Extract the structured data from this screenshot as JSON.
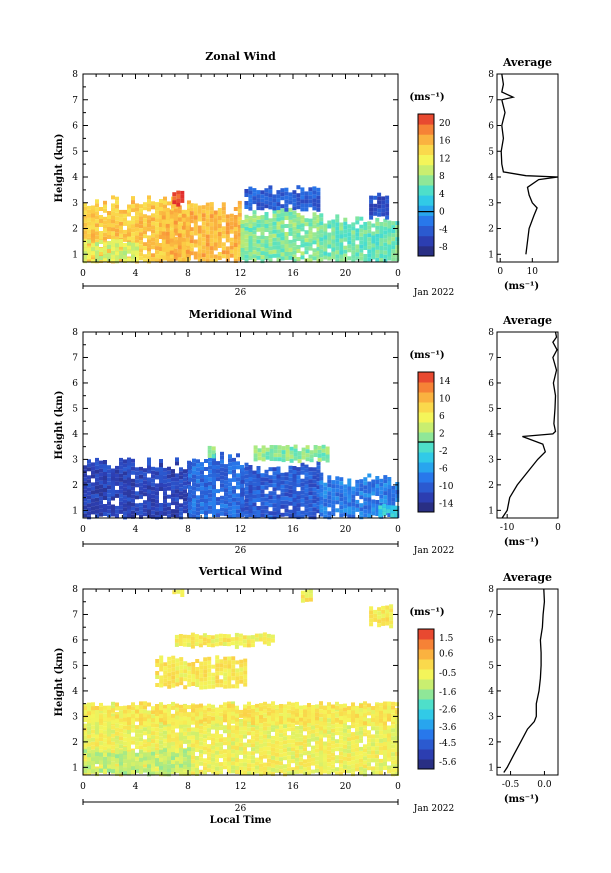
{
  "chart_data": [
    {
      "type": "heatmap",
      "title": "Zonal Wind",
      "ylabel": "Height (km)",
      "xlabel": "",
      "xlim": [
        0,
        24
      ],
      "ylim": [
        0.7,
        8
      ],
      "x_ticks": [
        "0",
        "4",
        "8",
        "12",
        "16",
        "20",
        "0"
      ],
      "y_ticks": [
        "1",
        "2",
        "3",
        "4",
        "5",
        "6",
        "7",
        "8"
      ],
      "date_label": "26",
      "month_label": "Jan 2022",
      "colorbar": {
        "unit": "(ms⁻¹)",
        "min": -10,
        "max": 22,
        "ticks": [
          "20",
          "16",
          "12",
          "8",
          "4",
          "0",
          "-4",
          "-8"
        ],
        "tick_values": [
          20,
          16,
          12,
          8,
          4,
          0,
          -4,
          -8
        ],
        "zero_line": 0
      },
      "regions": [
        {
          "t0": 0,
          "t1": 8,
          "h0": 0.8,
          "h1": 3.3,
          "value": 15
        },
        {
          "t0": 0,
          "t1": 4,
          "h0": 0.8,
          "h1": 1.6,
          "value": 10
        },
        {
          "t0": 6,
          "t1": 12,
          "h0": 0.8,
          "h1": 3.1,
          "value": 16
        },
        {
          "t0": 6.8,
          "t1": 7.5,
          "h0": 3.0,
          "h1": 3.5,
          "value": 21
        },
        {
          "t0": 12,
          "t1": 18,
          "h0": 0.8,
          "h1": 2.8,
          "value": 7
        },
        {
          "t0": 12.3,
          "t1": 17.8,
          "h0": 2.8,
          "h1": 3.7,
          "value": -4
        },
        {
          "t0": 18,
          "t1": 24,
          "h0": 0.8,
          "h1": 2.6,
          "value": 6
        },
        {
          "t0": 21.8,
          "t1": 23.2,
          "h0": 2.5,
          "h1": 3.4,
          "value": -5
        }
      ],
      "average_profile": {
        "title": "Average",
        "xlabel": "(ms⁻¹)",
        "xlim": [
          -1,
          18
        ],
        "x_ticks": [
          "0",
          "10"
        ],
        "x_tick_values": [
          0,
          10
        ],
        "heights": [
          1.0,
          1.5,
          2.0,
          2.5,
          2.8,
          3.0,
          3.3,
          3.6,
          3.9,
          4.0,
          4.05,
          4.2,
          4.5,
          5.0,
          5.5,
          6.0,
          6.5,
          7.0,
          7.1,
          7.3,
          7.6,
          8.0
        ],
        "values": [
          8,
          8.5,
          9,
          10.5,
          11.5,
          10,
          9,
          8.5,
          12,
          18,
          8,
          1,
          0.5,
          0.3,
          1,
          0.5,
          1.5,
          0.5,
          4,
          0.5,
          1,
          0.5
        ]
      }
    },
    {
      "type": "heatmap",
      "title": "Meridional Wind",
      "ylabel": "Height (km)",
      "xlabel": "",
      "xlim": [
        0,
        24
      ],
      "ylim": [
        0.7,
        8
      ],
      "x_ticks": [
        "0",
        "4",
        "8",
        "12",
        "16",
        "20",
        "0"
      ],
      "y_ticks": [
        "1",
        "2",
        "3",
        "4",
        "5",
        "6",
        "7",
        "8"
      ],
      "date_label": "26",
      "month_label": "Jan 2022",
      "colorbar": {
        "unit": "(ms⁻¹)",
        "min": -16,
        "max": 16,
        "ticks": [
          "14",
          "10",
          "6",
          "2",
          "-2",
          "-6",
          "-10",
          "-14"
        ],
        "tick_values": [
          14,
          10,
          6,
          2,
          -2,
          -6,
          -10,
          -14
        ],
        "zero_line": 0
      },
      "regions": [
        {
          "t0": 0,
          "t1": 8,
          "h0": 0.8,
          "h1": 3.1,
          "value": -12
        },
        {
          "t0": 8,
          "t1": 12,
          "h0": 0.8,
          "h1": 3.3,
          "value": -9
        },
        {
          "t0": 9.5,
          "t1": 10.0,
          "h0": 3.1,
          "h1": 3.6,
          "value": 1
        },
        {
          "t0": 12,
          "t1": 18,
          "h0": 0.8,
          "h1": 3.0,
          "value": -10
        },
        {
          "t0": 13.0,
          "t1": 18.5,
          "h0": 3.0,
          "h1": 3.6,
          "value": 1
        },
        {
          "t0": 18,
          "t1": 24,
          "h0": 0.8,
          "h1": 2.5,
          "value": -8
        },
        {
          "t0": 22.5,
          "t1": 24,
          "h0": 0.8,
          "h1": 1.3,
          "value": -3
        }
      ],
      "average_profile": {
        "title": "Average",
        "xlabel": "(ms⁻¹)",
        "xlim": [
          -12,
          0
        ],
        "x_ticks": [
          "-10",
          "0"
        ],
        "x_tick_values": [
          -10,
          0
        ],
        "heights": [
          0.7,
          1.0,
          1.5,
          2.0,
          2.5,
          3.0,
          3.3,
          3.6,
          3.9,
          4.0,
          4.1,
          4.4,
          5.0,
          5.5,
          6.0,
          6.5,
          7.0,
          7.3,
          7.6,
          7.8,
          8.0
        ],
        "values": [
          -11,
          -10,
          -9.5,
          -8,
          -6,
          -4,
          -2.5,
          -3,
          -7,
          -1,
          -0.5,
          -0.8,
          -0.6,
          -0.5,
          -0.9,
          -0.3,
          -1.0,
          -0.2,
          -1.0,
          -0.3,
          -0.5
        ]
      }
    },
    {
      "type": "heatmap",
      "title": "Vertical Wind",
      "ylabel": "Height (km)",
      "xlabel": "Local Time",
      "xlim": [
        0,
        24
      ],
      "ylim": [
        0.7,
        8
      ],
      "x_ticks": [
        "0",
        "4",
        "8",
        "12",
        "16",
        "20",
        "0"
      ],
      "y_ticks": [
        "1",
        "2",
        "3",
        "4",
        "5",
        "6",
        "7",
        "8"
      ],
      "date_label": "26",
      "month_label": "Jan 2022",
      "colorbar": {
        "unit": "(ms⁻¹)",
        "min": -6.0,
        "max": 2.0,
        "ticks": [
          "1.5",
          "0.6",
          "-0.5",
          "-1.6",
          "-2.6",
          "-3.6",
          "-4.5",
          "-5.6"
        ],
        "tick_values": [
          1.5,
          0.6,
          -0.5,
          -1.6,
          -2.6,
          -3.6,
          -4.5,
          -5.6
        ],
        "zero_line": null
      },
      "regions": [
        {
          "t0": 0,
          "t1": 24,
          "h0": 0.8,
          "h1": 3.6,
          "value": -0.6
        },
        {
          "t0": 0,
          "t1": 24,
          "h0": 2.8,
          "h1": 3.6,
          "value": -0.3
        },
        {
          "t0": 0,
          "t1": 8,
          "h0": 0.8,
          "h1": 1.8,
          "value": -1.2
        },
        {
          "t0": 5.5,
          "t1": 12.5,
          "h0": 4.2,
          "h1": 5.4,
          "value": -0.3
        },
        {
          "t0": 7.0,
          "t1": 14.5,
          "h0": 5.8,
          "h1": 6.3,
          "value": -0.4
        },
        {
          "t0": 21.8,
          "t1": 23.4,
          "h0": 6.6,
          "h1": 7.4,
          "value": -0.3
        },
        {
          "t0": 6.8,
          "t1": 7.5,
          "h0": 7.7,
          "h1": 8.0,
          "value": -0.4
        },
        {
          "t0": 16.6,
          "t1": 17.4,
          "h0": 7.6,
          "h1": 8.0,
          "value": -0.4
        }
      ],
      "average_profile": {
        "title": "Average",
        "xlabel": "(ms⁻¹)",
        "xlim": [
          -0.7,
          0.2
        ],
        "x_ticks": [
          "-0.5",
          "0.0"
        ],
        "x_tick_values": [
          -0.5,
          0.0
        ],
        "heights": [
          0.8,
          1.0,
          1.5,
          2.0,
          2.5,
          2.8,
          3.0,
          3.5,
          4.0,
          4.5,
          5.0,
          5.5,
          6.0,
          6.5,
          7.0,
          7.5,
          8.0
        ],
        "values": [
          -0.6,
          -0.55,
          -0.45,
          -0.35,
          -0.25,
          -0.15,
          -0.12,
          -0.12,
          -0.08,
          -0.06,
          -0.05,
          -0.05,
          -0.06,
          -0.03,
          -0.02,
          0.0,
          -0.01
        ]
      }
    }
  ]
}
